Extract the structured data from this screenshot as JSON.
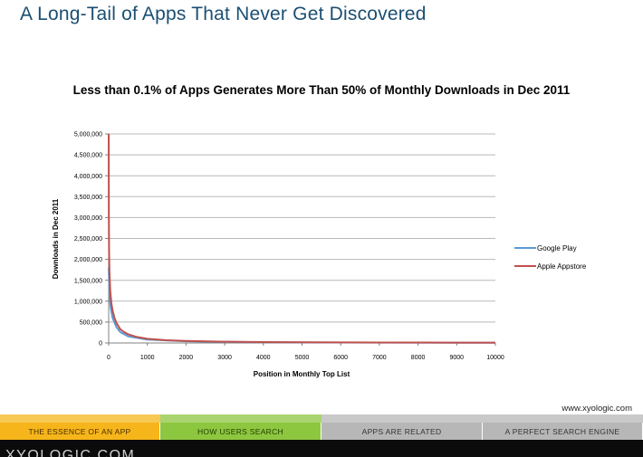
{
  "slide": {
    "title": "A Long-Tail of Apps That Never Get Discovered",
    "credit": "www.xyologic.com",
    "logo": "XYOLOGIC.COM"
  },
  "chart_data": {
    "type": "line",
    "title": "Less than 0.1% of Apps Generates More Than 50% of Monthly Downloads in Dec 2011",
    "xlabel": "Position in Monthly Top List",
    "ylabel": "Downloads in Dec 2011",
    "xlim": [
      0,
      10000
    ],
    "ylim": [
      0,
      5000000
    ],
    "x_ticks": [
      "0",
      "1000",
      "2000",
      "3000",
      "4000",
      "5000",
      "6000",
      "7000",
      "8000",
      "9000",
      "10000"
    ],
    "y_ticks": [
      "0",
      "500,000",
      "1,000,000",
      "1,500,000",
      "2,000,000",
      "2,500,000",
      "3,000,000",
      "3,500,000",
      "4,000,000",
      "4,500,000",
      "5,000,000"
    ],
    "grid": "horizontal",
    "legend_position": "right",
    "series": [
      {
        "name": "Google Play",
        "color": "#5b9bd5",
        "x": [
          1,
          20,
          50,
          100,
          200,
          300,
          500,
          1000,
          2000,
          3000,
          5000,
          7000,
          10000
        ],
        "y": [
          1800000,
          1200000,
          850000,
          600000,
          380000,
          260000,
          160000,
          80000,
          40000,
          25000,
          13000,
          8000,
          5000
        ]
      },
      {
        "name": "Apple Appstore",
        "color": "#c0504d",
        "x": [
          1,
          5,
          10,
          20,
          40,
          70,
          100,
          150,
          200,
          300,
          400,
          500,
          700,
          1000,
          1500,
          2000,
          3000,
          4000,
          5000,
          6000,
          7000,
          8000,
          9000,
          10000
        ],
        "y": [
          5000000,
          3000000,
          2200000,
          1700000,
          1250000,
          950000,
          780000,
          600000,
          480000,
          330000,
          260000,
          210000,
          150000,
          100000,
          65000,
          48000,
          30000,
          22000,
          17000,
          14000,
          11500,
          10000,
          9000,
          8000
        ]
      }
    ]
  },
  "nav": {
    "tabs": [
      {
        "label": "THE ESSENCE OF AN APP",
        "color": "#f6b51b",
        "text_color": "#4a3000"
      },
      {
        "label": "HOW USERS SEARCH",
        "color": "#8dc63f",
        "text_color": "#1f3d00"
      },
      {
        "label": "APPS ARE RELATED",
        "color": "#b7b7b7",
        "text_color": "#333333"
      },
      {
        "label": "A PERFECT SEARCH ENGINE",
        "color": "#b7b7b7",
        "text_color": "#333333"
      }
    ]
  }
}
